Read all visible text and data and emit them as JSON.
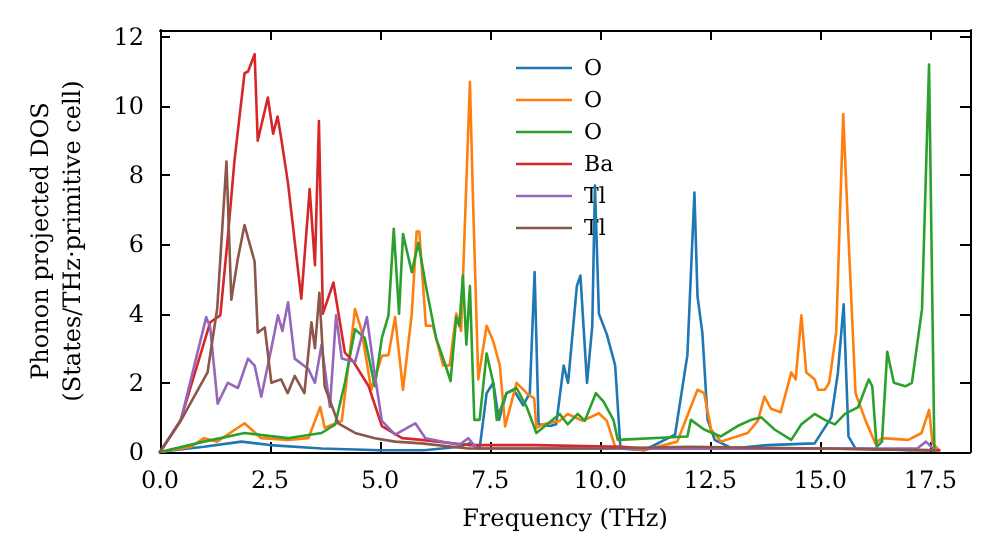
{
  "chart_data": {
    "type": "line",
    "xlabel": "Frequency (THz)",
    "ylabel": "Phonon projected DOS\n(States/THz·primitive cell)",
    "xlim": [
      0,
      18.4
    ],
    "ylim": [
      0,
      12.2
    ],
    "xticks": [
      {
        "value": 0,
        "label": "0.0"
      },
      {
        "value": 2.5,
        "label": "2.5"
      },
      {
        "value": 5,
        "label": "5.0"
      },
      {
        "value": 7.5,
        "label": "7.5"
      },
      {
        "value": 10,
        "label": "10.0"
      },
      {
        "value": 12.5,
        "label": "12.5"
      },
      {
        "value": 15,
        "label": "15.0"
      },
      {
        "value": 17.5,
        "label": "17.5"
      }
    ],
    "yticks": [
      0,
      2,
      4,
      6,
      8,
      10,
      12
    ],
    "grid": false,
    "legend": "top",
    "marker": "none",
    "line_style": "solid",
    "series": [
      {
        "name": "O",
        "color": "#1f77b4",
        "x": [
          0,
          0.3,
          1.0,
          1.85,
          2.5,
          3.67,
          5.0,
          6.0,
          6.8,
          7.04,
          7.26,
          7.42,
          7.57,
          7.7,
          7.87,
          8.03,
          8.25,
          8.4,
          8.51,
          8.6,
          8.86,
          9.0,
          9.17,
          9.27,
          9.47,
          9.55,
          9.7,
          9.82,
          9.88,
          9.97,
          10.15,
          10.34,
          10.46,
          11.0,
          11.7,
          11.98,
          12.14,
          12.21,
          12.32,
          12.44,
          12.6,
          13.0,
          13.8,
          14.87,
          15.25,
          15.4,
          15.53,
          15.64,
          15.8,
          17.0,
          17.7
        ],
        "values": [
          0,
          0.05,
          0.15,
          0.3,
          0.2,
          0.1,
          0.05,
          0.05,
          0.15,
          0.25,
          0.1,
          1.7,
          2.0,
          0.93,
          1.7,
          1.8,
          1.35,
          1.7,
          5.2,
          0.8,
          0.75,
          0.8,
          2.5,
          2.0,
          4.8,
          5.1,
          2.0,
          3.65,
          7.7,
          4.0,
          3.4,
          2.5,
          0.1,
          0.05,
          0.5,
          2.8,
          7.5,
          4.5,
          3.45,
          0.93,
          0.35,
          0.1,
          0.2,
          0.25,
          1.0,
          2.3,
          4.27,
          0.45,
          0.1,
          0.05,
          0.05
        ]
      },
      {
        "name": "O",
        "color": "#ff7f0e",
        "x": [
          0,
          0.7,
          1.0,
          1.3,
          1.92,
          2.3,
          2.9,
          3.37,
          3.64,
          3.74,
          4.13,
          4.43,
          4.58,
          4.8,
          5.04,
          5.19,
          5.34,
          5.52,
          5.72,
          5.83,
          5.89,
          6.04,
          6.2,
          6.43,
          6.58,
          6.73,
          6.84,
          7.04,
          7.11,
          7.23,
          7.42,
          7.57,
          7.72,
          7.84,
          8.1,
          8.33,
          8.5,
          8.55,
          8.7,
          9.08,
          9.26,
          9.6,
          9.97,
          10.15,
          10.34,
          11.0,
          11.75,
          12.21,
          12.36,
          12.52,
          12.74,
          13.35,
          13.58,
          13.73,
          13.88,
          14.1,
          14.34,
          14.44,
          14.57,
          14.68,
          14.87,
          14.95,
          15.1,
          15.2,
          15.36,
          15.52,
          15.64,
          15.8,
          16.03,
          16.25,
          16.4,
          17.0,
          17.3,
          17.47,
          17.55,
          17.7
        ],
        "values": [
          0,
          0.15,
          0.4,
          0.3,
          0.83,
          0.4,
          0.35,
          0.4,
          1.3,
          0.7,
          0.9,
          4.13,
          3.5,
          1.8,
          2.78,
          2.8,
          3.9,
          1.8,
          4.0,
          6.37,
          6.37,
          3.65,
          3.65,
          2.5,
          2.5,
          4.0,
          3.5,
          10.7,
          7.3,
          2.1,
          3.65,
          3.2,
          2.5,
          0.74,
          2.0,
          1.7,
          1.55,
          0.7,
          0.8,
          0.9,
          1.1,
          0.9,
          1.12,
          0.9,
          0.15,
          0.05,
          0.3,
          1.8,
          1.7,
          0.65,
          0.3,
          0.55,
          0.9,
          1.6,
          1.25,
          1.15,
          2.3,
          2.1,
          3.95,
          2.3,
          2.1,
          1.8,
          1.8,
          2.0,
          3.45,
          9.77,
          6.2,
          1.7,
          0.9,
          0.25,
          0.4,
          0.35,
          0.55,
          1.22,
          0.25,
          0.05
        ]
      },
      {
        "name": "O",
        "color": "#2ca02c",
        "x": [
          0,
          1.0,
          1.92,
          2.9,
          3.67,
          3.98,
          4.2,
          4.43,
          4.65,
          4.88,
          5.04,
          5.19,
          5.31,
          5.43,
          5.52,
          5.72,
          5.87,
          6.04,
          6.27,
          6.5,
          6.6,
          6.73,
          6.8,
          6.88,
          6.96,
          7.04,
          7.14,
          7.26,
          7.42,
          7.57,
          7.65,
          7.87,
          8.1,
          8.33,
          8.55,
          9.08,
          9.26,
          9.49,
          9.65,
          9.9,
          10.08,
          10.3,
          10.4,
          11.98,
          12.06,
          12.36,
          12.74,
          13.12,
          13.43,
          13.66,
          13.96,
          14.34,
          14.57,
          14.87,
          15.1,
          15.33,
          15.56,
          15.86,
          16.1,
          16.18,
          16.28,
          16.4,
          16.52,
          16.67,
          16.93,
          17.08,
          17.31,
          17.47,
          17.59
        ],
        "values": [
          0,
          0.3,
          0.55,
          0.4,
          0.55,
          0.8,
          2.0,
          3.55,
          3.3,
          1.9,
          3.3,
          3.95,
          6.45,
          4.0,
          6.3,
          5.2,
          6.05,
          4.8,
          3.3,
          2.45,
          2.05,
          3.9,
          3.65,
          5.1,
          3.1,
          4.8,
          0.93,
          0.93,
          2.85,
          2.0,
          0.93,
          1.7,
          1.85,
          1.3,
          0.55,
          1.1,
          0.8,
          1.1,
          0.9,
          1.7,
          1.45,
          0.93,
          0.35,
          0.45,
          0.93,
          0.65,
          0.45,
          0.75,
          0.93,
          1.0,
          0.65,
          0.35,
          0.8,
          1.1,
          0.93,
          0.8,
          1.1,
          1.3,
          2.1,
          1.9,
          0.15,
          0.3,
          2.9,
          2.0,
          1.9,
          2.0,
          4.13,
          11.2,
          0.1
        ]
      },
      {
        "name": "Ba",
        "color": "#d62728",
        "x": [
          0,
          0.47,
          1.14,
          1.37,
          1.54,
          1.69,
          1.92,
          2.0,
          2.15,
          2.22,
          2.45,
          2.57,
          2.67,
          2.75,
          2.91,
          3.21,
          3.4,
          3.52,
          3.61,
          3.7,
          3.94,
          4.2,
          4.4,
          4.74,
          5.04,
          5.5,
          5.94,
          7.0,
          8.5,
          10.5,
          11.0,
          13.0,
          15.0,
          17.7
        ],
        "values": [
          0,
          0.93,
          3.75,
          3.95,
          6.2,
          8.4,
          10.95,
          11.0,
          11.5,
          9.0,
          10.25,
          9.2,
          9.7,
          9.1,
          7.75,
          4.43,
          7.6,
          5.4,
          9.57,
          4.0,
          4.9,
          2.87,
          2.6,
          1.9,
          0.75,
          0.4,
          0.35,
          0.2,
          0.2,
          0.15,
          0.1,
          0.1,
          0.1,
          0.05
        ]
      },
      {
        "name": "Tl",
        "color": "#9467bd",
        "x": [
          0,
          0.47,
          1.05,
          1.14,
          1.31,
          1.54,
          1.77,
          2.0,
          2.15,
          2.3,
          2.53,
          2.68,
          2.78,
          2.91,
          3.06,
          3.37,
          3.52,
          3.67,
          3.86,
          4.0,
          4.13,
          4.43,
          4.7,
          4.86,
          5.04,
          5.34,
          5.8,
          6.03,
          6.8,
          7.0,
          7.2,
          10.0,
          15.0,
          17.2,
          17.4,
          17.6
        ],
        "values": [
          0,
          0.9,
          3.9,
          3.6,
          1.4,
          2.0,
          1.85,
          2.7,
          2.5,
          1.6,
          3.0,
          3.95,
          3.5,
          4.33,
          2.7,
          2.4,
          2.0,
          3.1,
          1.3,
          3.95,
          2.7,
          2.6,
          3.9,
          2.4,
          0.9,
          0.5,
          0.83,
          0.4,
          0.2,
          0.4,
          0.1,
          0.1,
          0.1,
          0.1,
          0.3,
          0.05
        ]
      },
      {
        "name": "Tl",
        "color": "#8c564b",
        "x": [
          0,
          0.47,
          1.08,
          1.3,
          1.51,
          1.62,
          1.77,
          1.92,
          2.15,
          2.22,
          2.38,
          2.53,
          2.75,
          2.9,
          3.06,
          3.28,
          3.44,
          3.52,
          3.62,
          3.74,
          4.05,
          4.43,
          4.88,
          5.34,
          5.94,
          7.0,
          10.0,
          12.0,
          15.0,
          17.6
        ],
        "values": [
          0,
          0.9,
          2.3,
          4.15,
          8.4,
          4.4,
          5.6,
          6.56,
          5.5,
          3.45,
          3.6,
          2.0,
          2.1,
          1.7,
          2.2,
          1.7,
          3.75,
          3.0,
          4.6,
          1.9,
          0.83,
          0.55,
          0.4,
          0.3,
          0.25,
          0.1,
          0.1,
          0.15,
          0.1,
          0.05
        ]
      }
    ]
  }
}
